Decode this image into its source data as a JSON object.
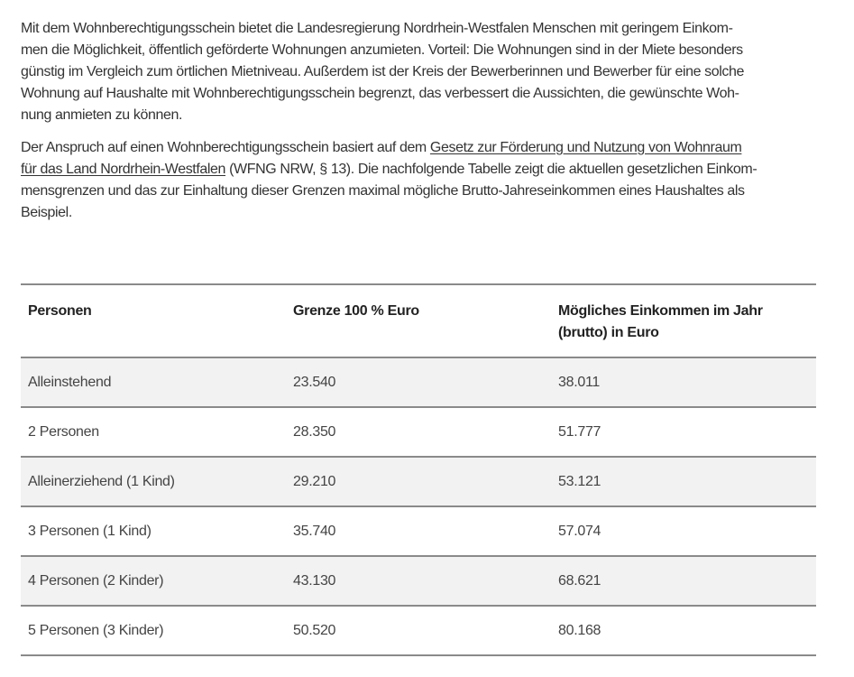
{
  "intro": {
    "lines": [
      "Mit dem Wohnberechtigungsschein bietet die Landesregierung Nordrhein-Westfalen Menschen mit geringem Einkom-",
      "men die Möglichkeit, öffentlich geförderte Wohnungen anzumieten. Vorteil: Die Wohnungen sind in der Miete besonders",
      "günstig im Vergleich zum örtlichen Mietniveau. Außerdem ist der Kreis der Bewerberinnen und Bewerber für eine solche",
      "Wohnung auf Haushalte mit Wohnberechtigungsschein begrenzt, das verbessert die Aussichten, die gewünschte Woh-",
      "nung anmieten zu können."
    ]
  },
  "legal": {
    "line1_text": "Der Anspruch auf einen Wohnberechtigungsschein basiert auf dem ",
    "link_part1": "Gesetz zur Förderung und Nutzung von Wohnraum",
    "link_part2": "für das Land Nordrhein-Westfalen",
    "line2_text": " (WFNG NRW, § 13). Die nachfolgende Tabelle zeigt die aktuellen gesetzlichen Einkom-",
    "line3": "mensgrenzen und das zur Einhaltung dieser Grenzen maximal mögliche Brutto-Jahreseinkommen eines Haushaltes als",
    "line4": "Beispiel."
  },
  "table": {
    "headers": [
      "Personen",
      "Grenze 100 % Euro",
      "Mögliches Einkommen im Jahr (brutto) in Euro"
    ],
    "rows": [
      [
        "Alleinstehend",
        "23.540",
        "38.011"
      ],
      [
        "2 Personen",
        "28.350",
        "51.777"
      ],
      [
        "Alleinerziehend (1 Kind)",
        "29.210",
        "53.121"
      ],
      [
        "3 Personen (1 Kind)",
        "35.740",
        "57.074"
      ],
      [
        "4 Personen (2 Kinder)",
        "43.130",
        "68.621"
      ],
      [
        "5 Personen (3 Kinder)",
        "50.520",
        "80.168"
      ]
    ]
  },
  "colors": {
    "text": "#333333",
    "row_alt": "#f2f2f2",
    "rule": "#8a8a8a"
  }
}
